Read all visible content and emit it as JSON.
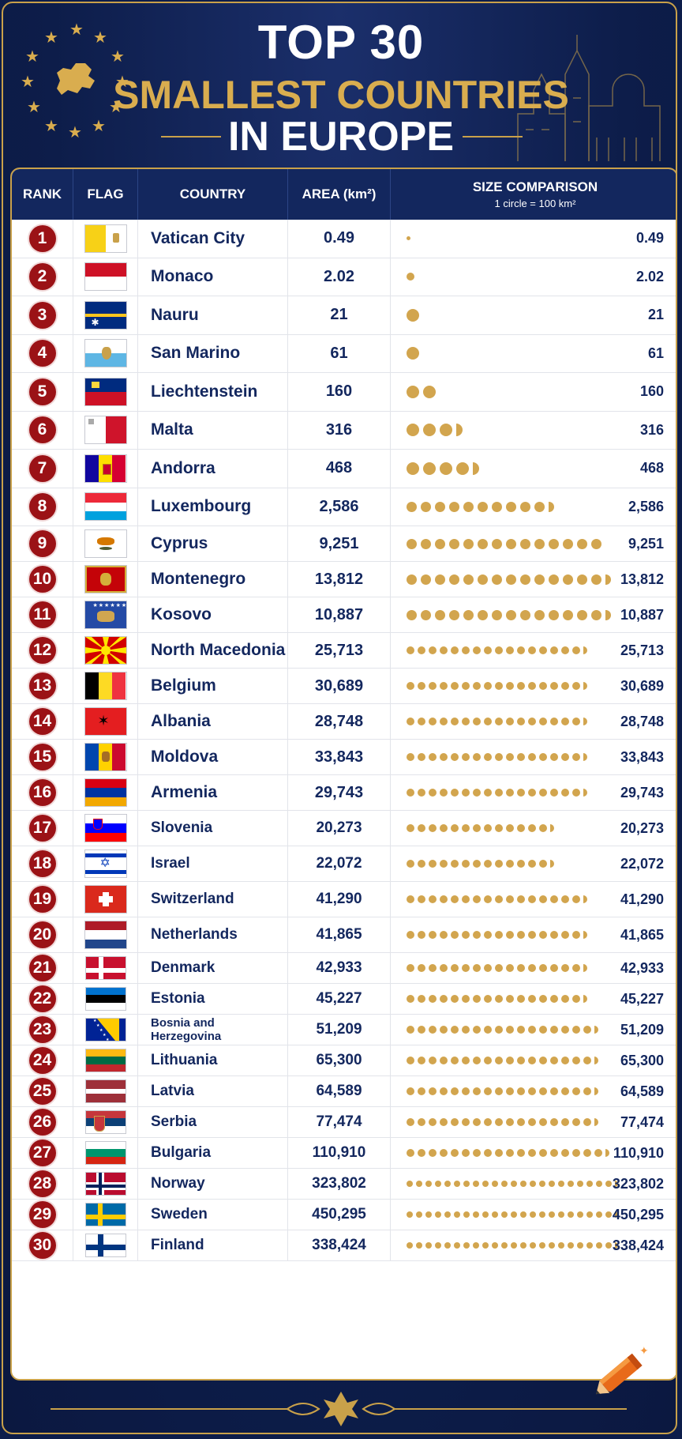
{
  "header": {
    "title_line1": "TOP 30",
    "title_line2": "SMALLEST COUNTRIES",
    "title_line3": "IN EUROPE"
  },
  "table": {
    "columns": {
      "rank": "RANK",
      "flag": "FLAG",
      "country": "COUNTRY",
      "area": "AREA (km²)",
      "comparison": "SIZE COMPARISON",
      "comparison_note": "1 circle = 100 km²"
    },
    "colors": {
      "header_bg": "#13275e",
      "badge": "#9b1216",
      "dot": "#d2a54e",
      "text": "#13275e"
    },
    "rows": [
      {
        "rank": "1",
        "country": "Vatican City",
        "area": "0.49",
        "cmp": "0.49",
        "dots": 1,
        "dot_size": "tiny",
        "partial": false,
        "flag": "vatican-flag-icon"
      },
      {
        "rank": "2",
        "country": "Monaco",
        "area": "2.02",
        "cmp": "2.02",
        "dots": 1,
        "dot_size": "small",
        "partial": false,
        "flag": "monaco-flag-icon"
      },
      {
        "rank": "3",
        "country": "Nauru",
        "area": "21",
        "cmp": "21",
        "dots": 1,
        "dot_size": "large",
        "partial": false,
        "flag": "nauru-flag-icon"
      },
      {
        "rank": "4",
        "country": "San Marino",
        "area": "61",
        "cmp": "61",
        "dots": 1,
        "dot_size": "large",
        "partial": false,
        "flag": "san-marino-flag-icon"
      },
      {
        "rank": "5",
        "country": "Liechtenstein",
        "area": "160",
        "cmp": "160",
        "dots": 2,
        "dot_size": "large",
        "partial": false,
        "flag": "liechtenstein-flag-icon"
      },
      {
        "rank": "6",
        "country": "Malta",
        "area": "316",
        "cmp": "316",
        "dots": 3,
        "dot_size": "large",
        "partial": true,
        "flag": "malta-flag-icon"
      },
      {
        "rank": "7",
        "country": "Andorra",
        "area": "468",
        "cmp": "468",
        "dots": 4,
        "dot_size": "large",
        "partial": true,
        "flag": "andorra-flag-icon"
      },
      {
        "rank": "8",
        "country": "Luxembourg",
        "area": "2,586",
        "cmp": "2,586",
        "dots": 10,
        "dot_size": "medium",
        "partial": true,
        "flag": "luxembourg-flag-icon"
      },
      {
        "rank": "9",
        "country": "Cyprus",
        "area": "9,251",
        "cmp": "9,251",
        "dots": 14,
        "dot_size": "medium",
        "partial": false,
        "flag": "cyprus-flag-icon"
      },
      {
        "rank": "10",
        "country": "Montenegro",
        "area": "13,812",
        "cmp": "13,812",
        "dots": 14,
        "dot_size": "medium",
        "partial": true,
        "flag": "montenegro-flag-icon"
      },
      {
        "rank": "11",
        "country": "Kosovo",
        "area": "10,887",
        "cmp": "10,887",
        "dots": 14,
        "dot_size": "medium",
        "partial": true,
        "flag": "kosovo-flag-icon"
      },
      {
        "rank": "12",
        "country": "North Macedonia",
        "area": "25,713",
        "cmp": "25,713",
        "dots": 16,
        "dot_size": "small",
        "partial": true,
        "flag": "north-macedonia-flag-icon"
      },
      {
        "rank": "13",
        "country": "Belgium",
        "area": "30,689",
        "cmp": "30,689",
        "dots": 16,
        "dot_size": "small",
        "partial": true,
        "flag": "belgium-flag-icon"
      },
      {
        "rank": "14",
        "country": "Albania",
        "area": "28,748",
        "cmp": "28,748",
        "dots": 16,
        "dot_size": "small",
        "partial": true,
        "flag": "albania-flag-icon"
      },
      {
        "rank": "15",
        "country": "Moldova",
        "area": "33,843",
        "cmp": "33,843",
        "dots": 16,
        "dot_size": "small",
        "partial": true,
        "flag": "moldova-flag-icon"
      },
      {
        "rank": "16",
        "country": "Armenia",
        "area": "29,743",
        "cmp": "29,743",
        "dots": 16,
        "dot_size": "small",
        "partial": true,
        "flag": "armenia-flag-icon"
      },
      {
        "rank": "17",
        "country": "Slovenia",
        "area": "20,273",
        "cmp": "20,273",
        "dots": 13,
        "dot_size": "small",
        "partial": true,
        "flag": "slovenia-flag-icon"
      },
      {
        "rank": "18",
        "country": "Israel",
        "area": "22,072",
        "cmp": "22,072",
        "dots": 13,
        "dot_size": "small",
        "partial": true,
        "flag": "israel-flag-icon"
      },
      {
        "rank": "19",
        "country": "Switzerland",
        "area": "41,290",
        "cmp": "41,290",
        "dots": 16,
        "dot_size": "small",
        "partial": true,
        "flag": "switzerland-flag-icon"
      },
      {
        "rank": "20",
        "country": "Netherlands",
        "area": "41,865",
        "cmp": "41,865",
        "dots": 16,
        "dot_size": "small",
        "partial": true,
        "flag": "netherlands-flag-icon"
      },
      {
        "rank": "21",
        "country": "Denmark",
        "area": "42,933",
        "cmp": "42,933",
        "dots": 16,
        "dot_size": "small",
        "partial": true,
        "flag": "denmark-flag-icon"
      },
      {
        "rank": "22",
        "country": "Estonia",
        "area": "45,227",
        "cmp": "45,227",
        "dots": 16,
        "dot_size": "small",
        "partial": true,
        "flag": "estonia-flag-icon"
      },
      {
        "rank": "23",
        "country": "Bosnia and Herzegovina",
        "area": "51,209",
        "cmp": "51,209",
        "dots": 17,
        "dot_size": "small",
        "partial": true,
        "flag": "bosnia-flag-icon"
      },
      {
        "rank": "24",
        "country": "Lithuania",
        "area": "65,300",
        "cmp": "65,300",
        "dots": 17,
        "dot_size": "small",
        "partial": true,
        "flag": "lithuania-flag-icon"
      },
      {
        "rank": "25",
        "country": "Latvia",
        "area": "64,589",
        "cmp": "64,589",
        "dots": 17,
        "dot_size": "small",
        "partial": true,
        "flag": "latvia-flag-icon"
      },
      {
        "rank": "26",
        "country": "Serbia",
        "area": "77,474",
        "cmp": "77,474",
        "dots": 17,
        "dot_size": "small",
        "partial": true,
        "flag": "serbia-flag-icon"
      },
      {
        "rank": "27",
        "country": "Bulgaria",
        "area": "110,910",
        "cmp": "110,910",
        "dots": 18,
        "dot_size": "small",
        "partial": true,
        "flag": "bulgaria-flag-icon"
      },
      {
        "rank": "28",
        "country": "Norway",
        "area": "323,802",
        "cmp": "323,802",
        "dots": 22,
        "dot_size": "tiny2",
        "partial": true,
        "flag": "norway-flag-icon"
      },
      {
        "rank": "29",
        "country": "Sweden",
        "area": "450,295",
        "cmp": "450,295",
        "dots": 22,
        "dot_size": "tiny2",
        "partial": true,
        "flag": "sweden-flag-icon"
      },
      {
        "rank": "30",
        "country": "Finland",
        "area": "338,424",
        "cmp": "338,424",
        "dots": 22,
        "dot_size": "tiny2",
        "partial": true,
        "flag": "finland-flag-icon"
      }
    ]
  }
}
